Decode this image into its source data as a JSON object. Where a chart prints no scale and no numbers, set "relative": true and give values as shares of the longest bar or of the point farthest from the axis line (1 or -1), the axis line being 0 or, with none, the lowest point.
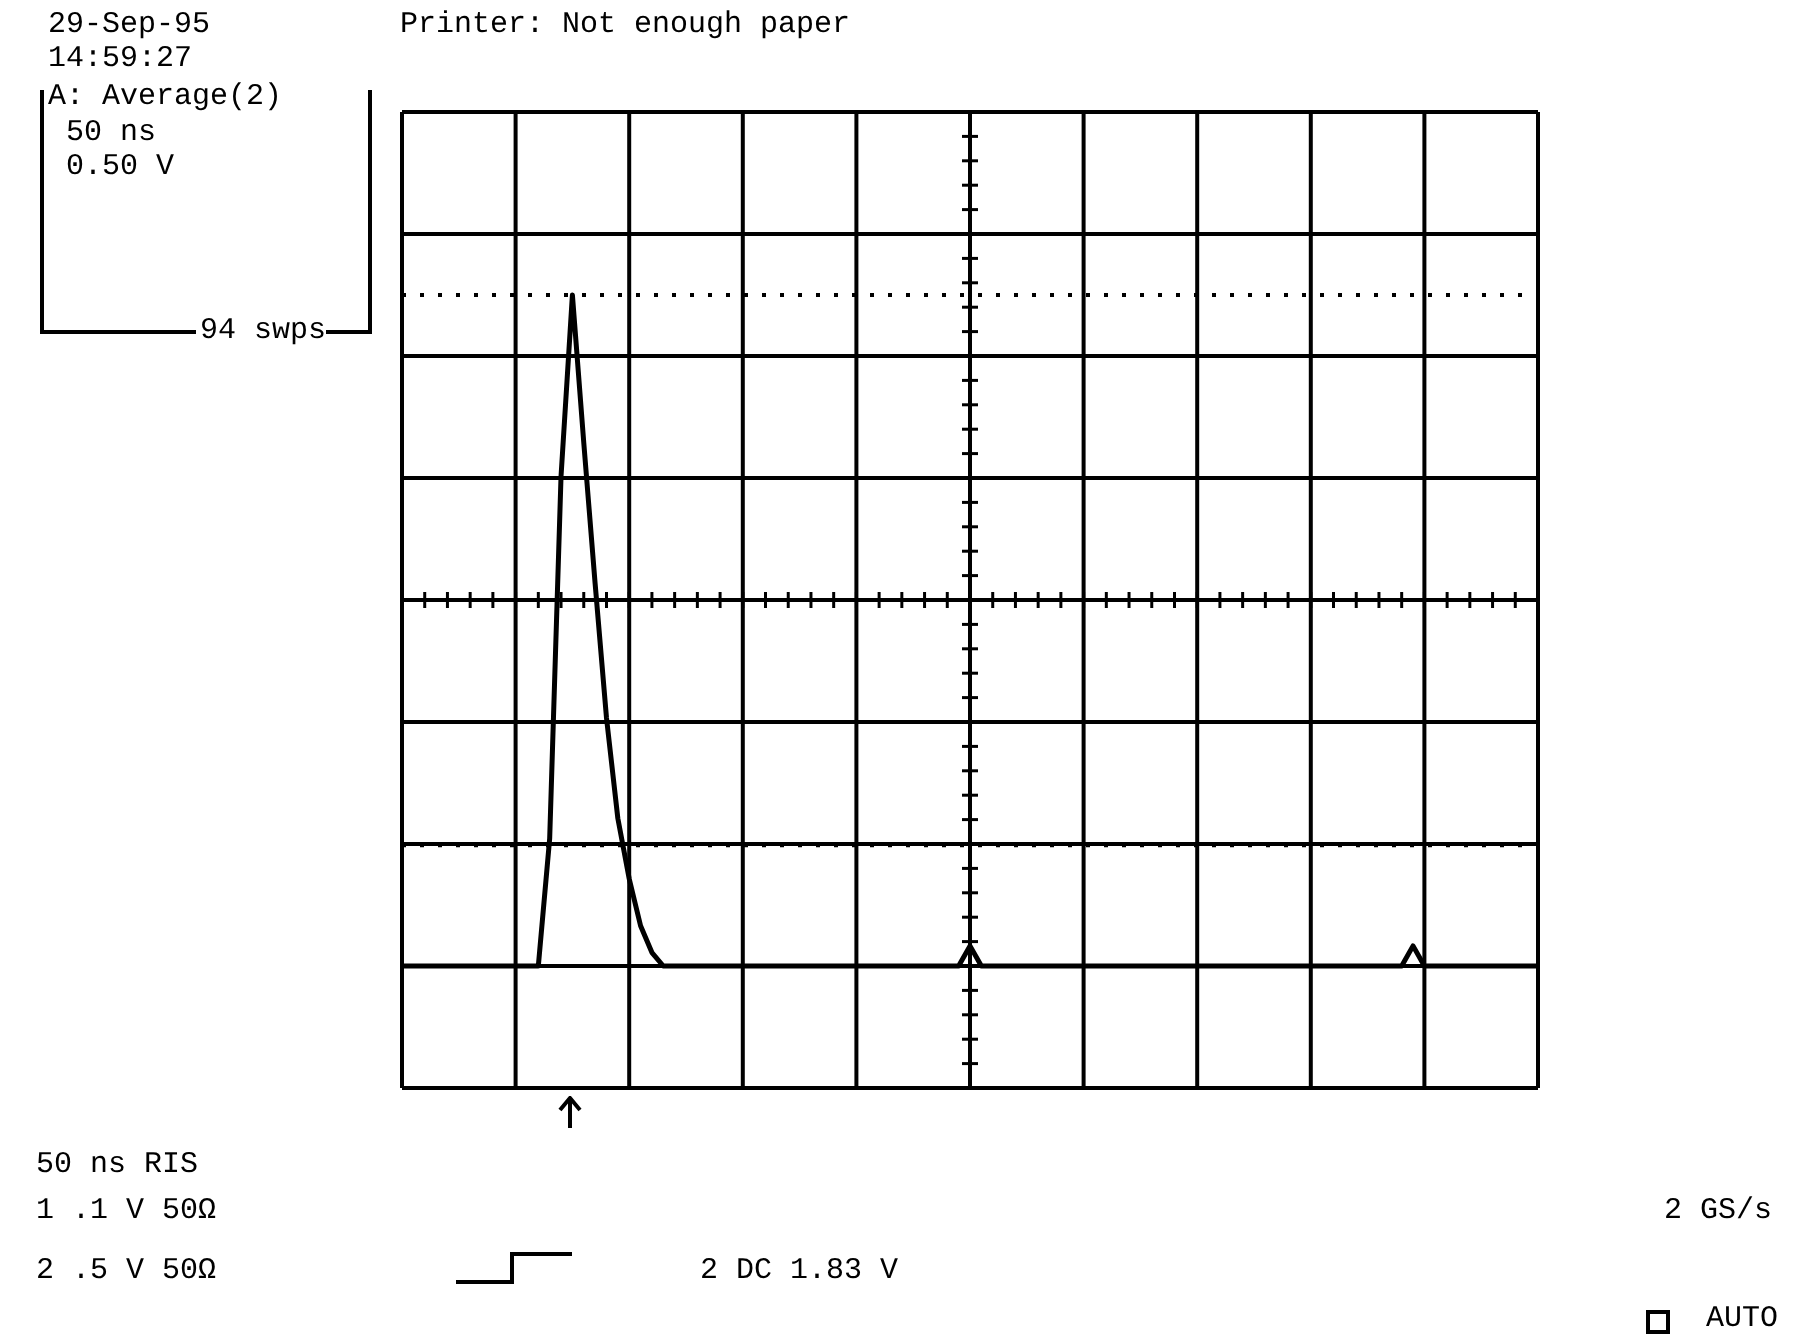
{
  "chart_data": {
    "type": "line",
    "relative": true,
    "grid": true,
    "legend": false,
    "tick_labels": false,
    "marker": "none",
    "line_style": "solid",
    "categories": [
      null,
      null,
      null,
      null,
      null,
      null,
      null,
      null,
      null,
      null,
      null,
      null,
      null,
      null,
      null,
      null,
      null,
      null,
      null,
      null,
      null,
      null,
      null,
      null,
      null,
      null,
      null,
      null,
      null,
      null,
      null,
      null,
      null,
      null,
      null,
      null,
      null,
      null,
      null,
      null,
      null,
      null,
      null,
      null,
      null,
      null,
      null,
      null,
      null,
      null,
      null,
      null,
      null,
      null,
      null,
      null,
      null,
      null,
      null,
      null,
      null,
      null,
      null,
      null,
      null,
      null,
      null,
      null,
      null,
      null,
      null,
      null,
      null,
      null,
      null,
      null,
      null,
      null,
      null,
      null,
      null,
      null,
      null,
      null,
      null,
      null,
      null,
      null,
      null,
      null,
      null,
      null,
      null,
      null,
      null,
      null,
      null,
      null,
      null,
      null,
      null
    ],
    "series": [
      {
        "color": "#000000",
        "values": [
          0,
          0,
          0,
          0,
          0,
          0,
          0,
          0,
          0,
          0,
          0,
          0,
          0,
          0.19,
          0.73,
          1,
          0.78,
          0.57,
          0.37,
          0.22,
          0.13,
          0.06,
          0.02,
          0,
          0,
          0,
          0,
          0,
          0,
          0,
          0,
          0,
          0,
          0,
          0,
          0,
          0,
          0,
          0,
          0,
          0,
          0,
          0,
          0,
          0,
          0,
          0,
          0,
          0,
          0,
          0.03,
          0,
          0,
          0,
          0,
          0,
          0,
          0,
          0,
          0,
          0,
          0,
          0,
          0,
          0,
          0,
          0,
          0,
          0,
          0,
          0,
          0,
          0,
          0,
          0,
          0,
          0,
          0,
          0,
          0,
          0,
          0,
          0,
          0,
          0,
          0,
          0,
          0,
          0,
          0.03,
          0,
          0,
          0,
          0,
          0,
          0,
          0,
          0,
          0,
          0,
          0
        ]
      }
    ],
    "ref_lines": [
      {
        "axis": "y",
        "value": 1,
        "color": "#000000",
        "line_style": "dotted"
      },
      {
        "axis": "y",
        "value": 0.18,
        "color": "#000000",
        "line_style": "dotted"
      }
    ],
    "annotations": [
      "29-Sep-95",
      "14:59:27",
      "Printer: Not enough paper",
      "A: Average(2)",
      "50 ns",
      "0.50 V",
      "94 swps",
      "50 ns RIS",
      "1 .1 V 50Ω",
      "2 .5 V 50Ω",
      "2 DC 1.83 V",
      "2 GS/s",
      "AUTO"
    ]
  }
}
